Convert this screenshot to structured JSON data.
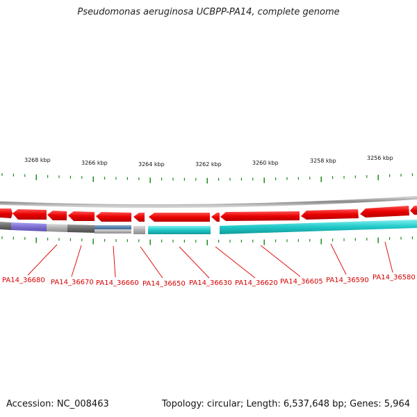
{
  "title": "Pseudomonas aeruginosa UCBPP-PA14, complete genome",
  "footer": {
    "accession": "Accession: NC_008463",
    "summary": "Topology: circular; Length: 6,537,648 bp; Genes: 5,964"
  },
  "colors": {
    "forward_gene": "#e80000",
    "reverse_teal": "#22c8c8",
    "reverse_purple": "#7b6fd0",
    "reverse_grey": "#b0b0b0",
    "reverse_darkgrey": "#6b6b6b",
    "reverse_blue": "#5b86b0",
    "ticks": "#1a8a1a",
    "gene_label": "#d40000",
    "backbone": "#9a9a9a"
  },
  "scale": {
    "labels": [
      "3268 kbp",
      "3266 kbp",
      "3264 kbp",
      "3262 kbp",
      "3260 kbp",
      "3258 kbp",
      "3256 kbp"
    ]
  },
  "genes": {
    "labels": [
      "PA14_36680",
      "PA14_36670",
      "PA14_36660",
      "PA14_36650",
      "PA14_36630",
      "PA14_36620",
      "PA14_36605",
      "PA14_36590",
      "PA14_36580"
    ]
  }
}
